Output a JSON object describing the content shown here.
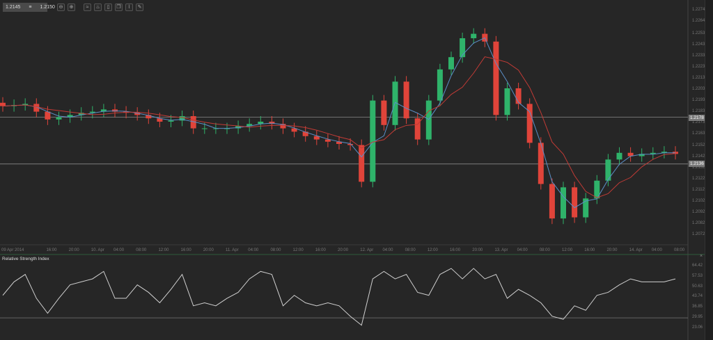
{
  "toolbar": {
    "bid": "1.2145",
    "ask": "1.2150",
    "sep": "≡",
    "buttons": [
      {
        "name": "zoom-out-icon",
        "glyph": "⊖"
      },
      {
        "name": "zoom-in-icon",
        "glyph": "⊕"
      },
      {
        "name": "chart-type-icon",
        "glyph": "≈"
      },
      {
        "name": "indicators-icon",
        "glyph": "♨"
      },
      {
        "name": "template-icon",
        "glyph": "▯"
      },
      {
        "name": "copy-icon",
        "glyph": "❐"
      },
      {
        "name": "drawing-icon",
        "glyph": "⌇"
      },
      {
        "name": "edit-icon",
        "glyph": "✎"
      }
    ]
  },
  "colors": {
    "up": "#2fb36a",
    "down": "#e0443a",
    "ma_fast": "#5b8fc7",
    "ma_slow": "#c23b36",
    "grid": "#3a3a3a",
    "line": "#cfcfcf"
  },
  "markers": {
    "current": "1.2178",
    "level": "1.2136"
  },
  "rsi": {
    "title": "Relative Strength Index",
    "close": "×",
    "level": 29.95,
    "ticks": [
      "64.42",
      "57.53",
      "50.63",
      "43.74",
      "36.85",
      "29.95",
      "23.06"
    ],
    "values": [
      45,
      54,
      59,
      43,
      33,
      43,
      52,
      54,
      56,
      61,
      43,
      43,
      52,
      47,
      40,
      49,
      59,
      38,
      40,
      38,
      43,
      47,
      56,
      61,
      59,
      38,
      45,
      40,
      38,
      40,
      38,
      31,
      25,
      56,
      61,
      56,
      59,
      47,
      45,
      59,
      63,
      56,
      63,
      56,
      59,
      43,
      49,
      45,
      40,
      31,
      29,
      38,
      35,
      45,
      47,
      52,
      56,
      54,
      54,
      54,
      56
    ]
  },
  "chart_data": {
    "type": "candlestick",
    "title": "",
    "interval_hours": 2,
    "start": "09 Apr 2014 07:00",
    "ylim": [
      1.2072,
      1.2274
    ],
    "hlines": [
      1.2178,
      1.2136
    ],
    "closes": [
      1.2188,
      1.2189,
      1.219,
      1.2183,
      1.2176,
      1.2178,
      1.218,
      1.2182,
      1.2183,
      1.2185,
      1.2183,
      1.2182,
      1.218,
      1.2177,
      1.2174,
      1.2175,
      1.2179,
      1.2168,
      1.2168,
      1.2168,
      1.2168,
      1.217,
      1.2172,
      1.2174,
      1.2172,
      1.2168,
      1.2165,
      1.2161,
      1.2158,
      1.2156,
      1.2154,
      1.2153,
      1.212,
      1.2193,
      1.2171,
      1.221,
      1.2177,
      1.2158,
      1.2193,
      1.2221,
      1.2232,
      1.2249,
      1.2253,
      1.2246,
      1.218,
      1.2204,
      1.219,
      1.2155,
      1.2118,
      1.2087,
      1.2115,
      1.2088,
      1.2105,
      1.2121,
      1.214,
      1.2146,
      1.2143,
      1.2145,
      1.2146,
      1.2147,
      1.2145
    ],
    "price_ticks": [
      "1.2274",
      "1.2264",
      "1.2253",
      "1.2243",
      "1.2233",
      "1.2223",
      "1.2213",
      "1.2203",
      "1.2193",
      "1.2183",
      "1.2173",
      "1.2163",
      "1.2152",
      "1.2142",
      "1.2132",
      "1.2122",
      "1.2112",
      "1.2102",
      "1.2092",
      "1.2082",
      "1.2072"
    ],
    "first_label": "09 Apr 2014",
    "time_labels": [
      "16:00",
      "20:00",
      "10. Apr",
      "04:00",
      "08:00",
      "12:00",
      "16:00",
      "20:00",
      "11. Apr",
      "04:00",
      "08:00",
      "12:00",
      "16:00",
      "20:00",
      "12. Apr",
      "04:00",
      "08:00",
      "12:00",
      "16:00",
      "20:00",
      "13. Apr",
      "04:00",
      "08:00",
      "12:00",
      "16:00",
      "20:00",
      "14. Apr",
      "04:00",
      "08:00"
    ]
  }
}
